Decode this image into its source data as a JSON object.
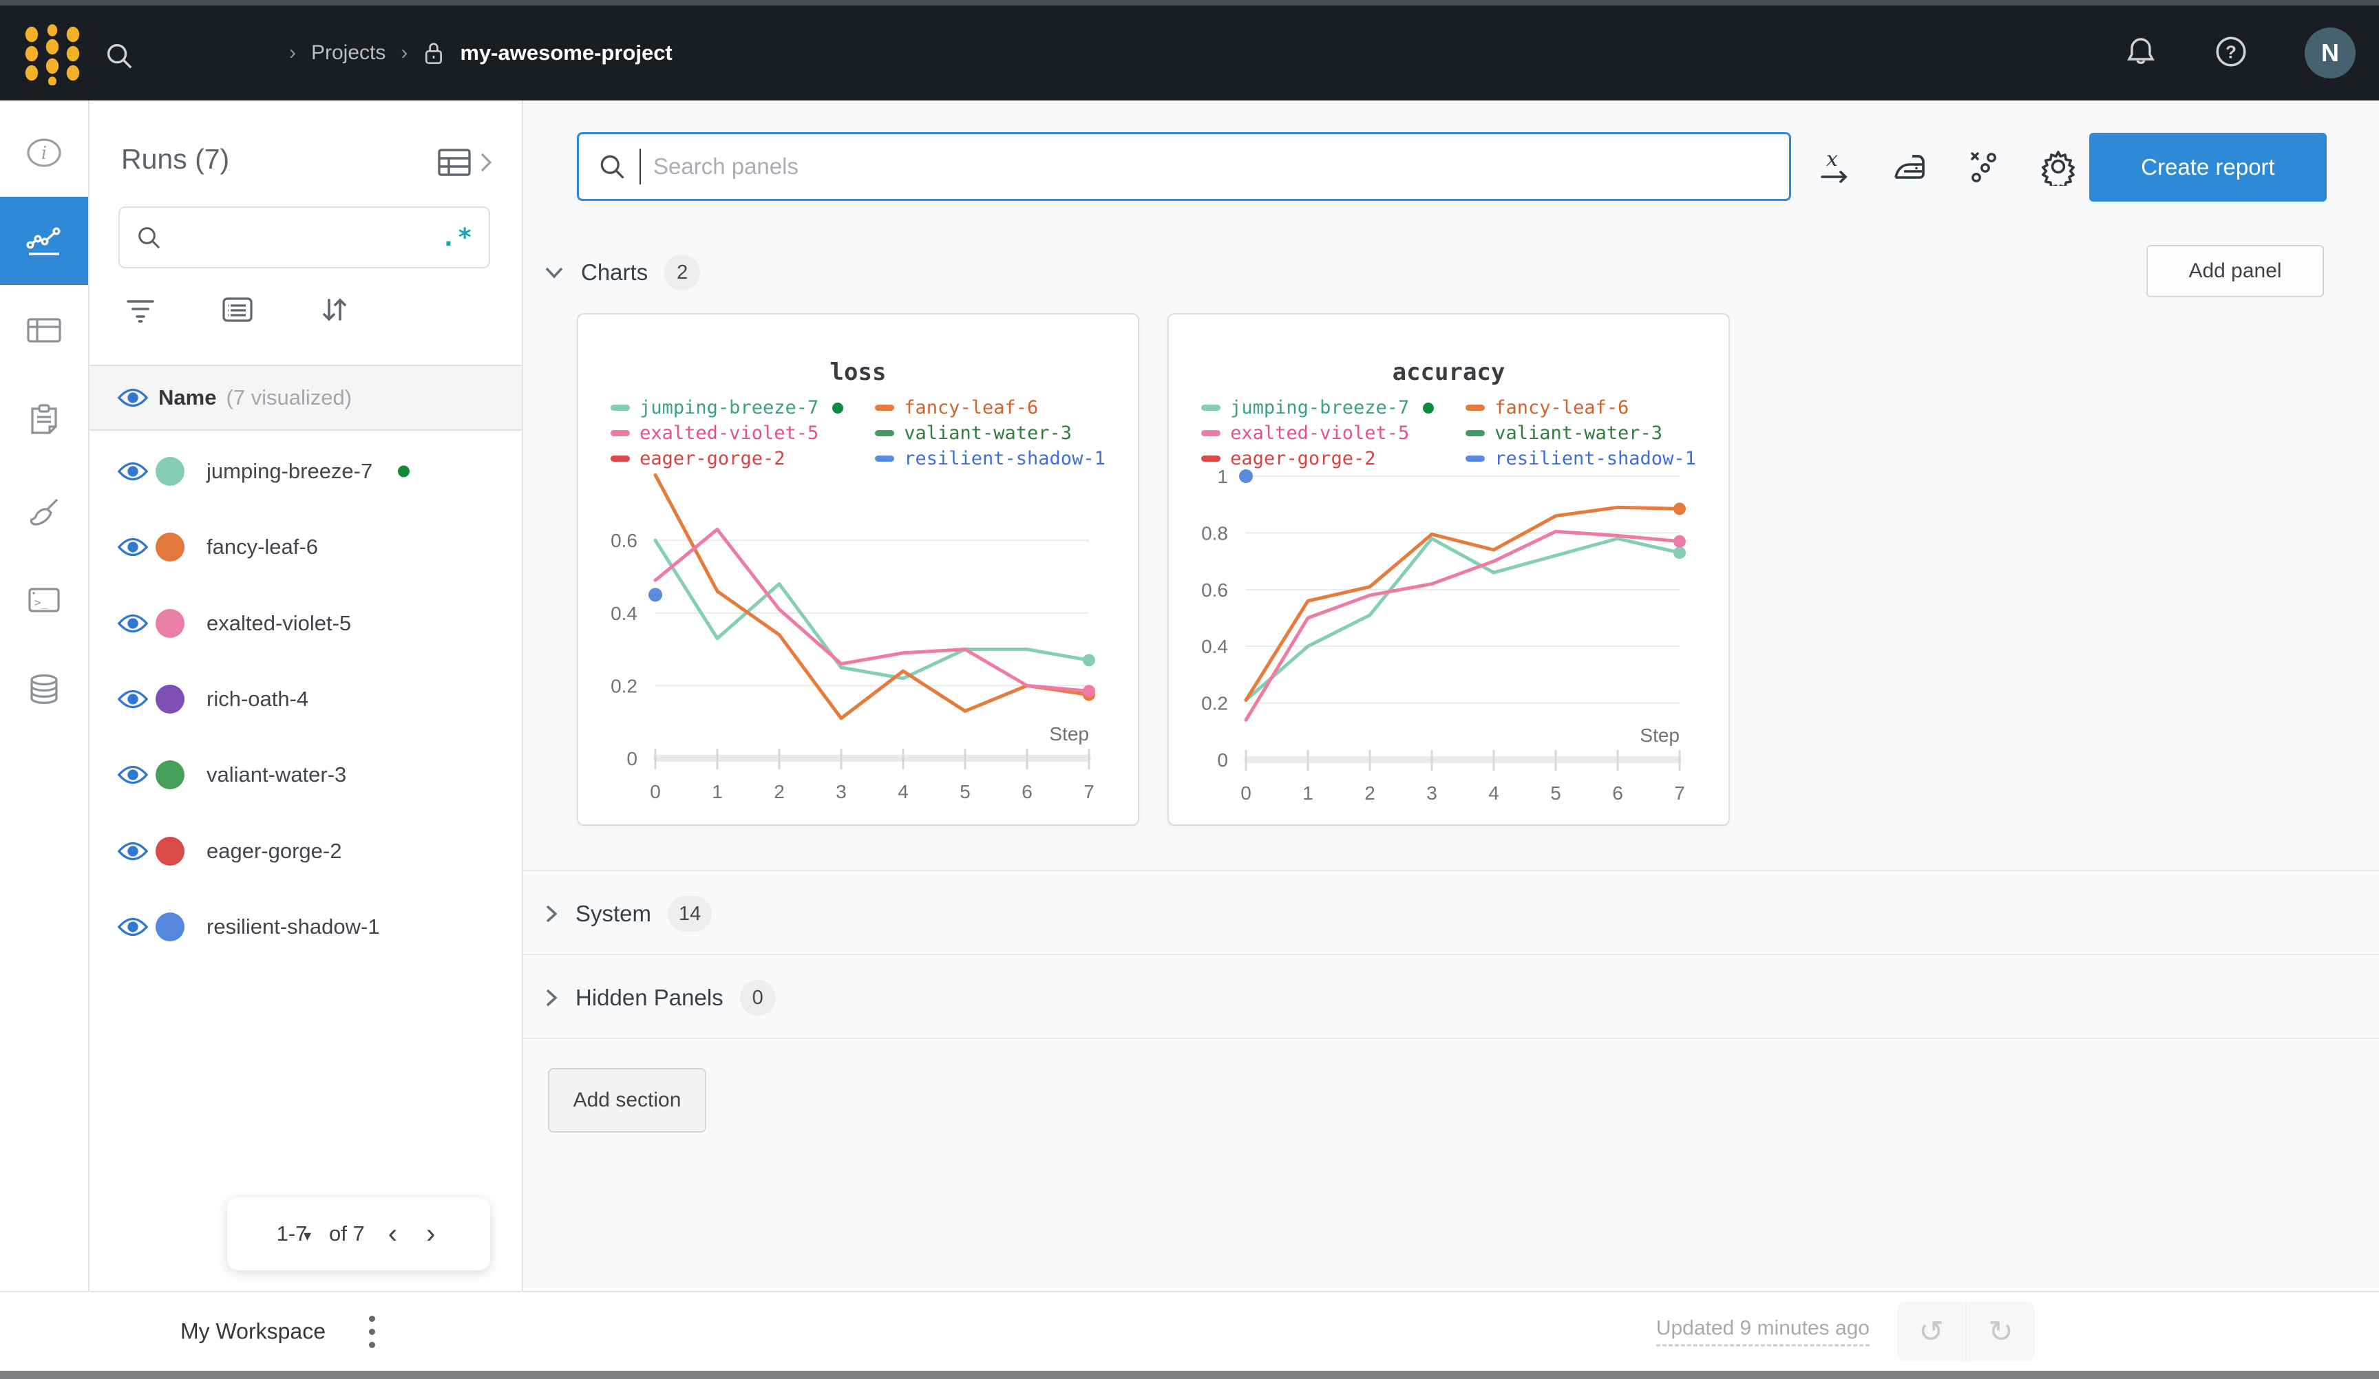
{
  "topbar": {
    "breadcrumb": {
      "separator": "›",
      "projects_label": "Projects",
      "project_name": "my-awesome-project"
    },
    "icons": [
      "wandb-logo",
      "search-icon",
      "lock-icon",
      "bell-icon",
      "help-icon"
    ],
    "avatar_initial": "N"
  },
  "sidebar_rail": {
    "items": [
      "info",
      "charts (active)",
      "tables",
      "notes",
      "sweeps-brush",
      "terminal",
      "artifacts-database"
    ]
  },
  "runs_panel": {
    "title": "Runs (7)",
    "search_placeholder": "",
    "regex_icon_text": ".*",
    "header": {
      "name_label": "Name",
      "visualized_label": "(7 visualized)"
    },
    "runs": [
      {
        "name": "jumping-breeze-7",
        "color": "#84cdb3",
        "running": true
      },
      {
        "name": "fancy-leaf-6",
        "color": "#e0793b",
        "running": false
      },
      {
        "name": "exalted-violet-5",
        "color": "#e97ea7",
        "running": false
      },
      {
        "name": "rich-oath-4",
        "color": "#7e50b4",
        "running": false
      },
      {
        "name": "valiant-water-3",
        "color": "#46a05c",
        "running": false
      },
      {
        "name": "eager-gorge-2",
        "color": "#d84b49",
        "running": false
      },
      {
        "name": "resilient-shadow-1",
        "color": "#5588dd",
        "running": false
      }
    ],
    "pagination": {
      "range_label": "1-7",
      "of_label": "of 7",
      "prev": "‹",
      "next": "›"
    }
  },
  "main": {
    "search_placeholder": "Search panels",
    "create_report_label": "Create report",
    "add_panel_label": "Add panel",
    "add_section_label": "Add section",
    "sections": [
      {
        "label": "Charts",
        "count": "2"
      },
      {
        "label": "System",
        "count": "14"
      },
      {
        "label": "Hidden Panels",
        "count": "0"
      }
    ]
  },
  "footer": {
    "workspace_label": "My Workspace",
    "updated_text": "Updated 9 minutes ago",
    "undo_icon": "↺",
    "redo_icon": "↻"
  },
  "colors": {
    "accent_blue": "#2e8ad6",
    "eye_blue": "#2e78d2",
    "topbar_bg": "#1a1d21",
    "logo_gold": "#f2b126",
    "avatar_bg": "#47626f",
    "regex_teal": "#14a5b0",
    "running_green": "#118a38"
  },
  "chart_data": [
    {
      "type": "line",
      "title": "loss",
      "xlabel": "Step",
      "x": [
        0,
        1,
        2,
        3,
        4,
        5,
        6,
        7
      ],
      "xlim": [
        0,
        7
      ],
      "ylim": [
        0,
        0.8
      ],
      "yticks": [
        0,
        0.2,
        0.4,
        0.6
      ],
      "grid": true,
      "legend_position": "top",
      "series": [
        {
          "name": "jumping-breeze-7",
          "line_color": "#85ceb6",
          "text_color": "#3aa089",
          "running": true,
          "values": [
            0.6,
            0.33,
            0.48,
            0.25,
            0.22,
            0.3,
            0.3,
            0.27
          ]
        },
        {
          "name": "fancy-leaf-6",
          "line_color": "#e57b3c",
          "text_color": "#d2642a",
          "running": false,
          "values": [
            0.78,
            0.46,
            0.34,
            0.11,
            0.24,
            0.13,
            0.2,
            0.175
          ]
        },
        {
          "name": "exalted-violet-5",
          "line_color": "#ee7ba6",
          "text_color": "#e4508c",
          "running": false,
          "values": [
            0.49,
            0.63,
            0.41,
            0.26,
            0.29,
            0.3,
            0.2,
            0.185
          ]
        },
        {
          "name": "valiant-water-3",
          "line_color": "#479a5f",
          "text_color": "#2f7d3d",
          "running": false,
          "values": []
        },
        {
          "name": "eager-gorge-2",
          "line_color": "#d94a4b",
          "text_color": "#d94340",
          "running": false,
          "values": []
        },
        {
          "name": "resilient-shadow-1",
          "line_color": "#5b8bdf",
          "text_color": "#3e6fd9",
          "running": false,
          "values": [
            0.45
          ]
        }
      ]
    },
    {
      "type": "line",
      "title": "accuracy",
      "xlabel": "Step",
      "x": [
        0,
        1,
        2,
        3,
        4,
        5,
        6,
        7
      ],
      "xlim": [
        0,
        7
      ],
      "ylim": [
        0,
        1.05
      ],
      "yticks": [
        0,
        0.2,
        0.4,
        0.6,
        0.8,
        1
      ],
      "grid": true,
      "legend_position": "top",
      "series": [
        {
          "name": "jumping-breeze-7",
          "line_color": "#85ceb6",
          "text_color": "#3aa089",
          "running": true,
          "values": [
            0.21,
            0.4,
            0.51,
            0.78,
            0.66,
            0.72,
            0.78,
            0.73
          ]
        },
        {
          "name": "fancy-leaf-6",
          "line_color": "#e57b3c",
          "text_color": "#d2642a",
          "running": false,
          "values": [
            0.21,
            0.56,
            0.61,
            0.795,
            0.74,
            0.86,
            0.89,
            0.885
          ]
        },
        {
          "name": "exalted-violet-5",
          "line_color": "#ee7ba6",
          "text_color": "#e4508c",
          "running": false,
          "values": [
            0.14,
            0.5,
            0.58,
            0.62,
            0.7,
            0.805,
            0.79,
            0.77
          ]
        },
        {
          "name": "valiant-water-3",
          "line_color": "#479a5f",
          "text_color": "#2f7d3d",
          "running": false,
          "values": []
        },
        {
          "name": "eager-gorge-2",
          "line_color": "#d94a4b",
          "text_color": "#d94340",
          "running": false,
          "values": []
        },
        {
          "name": "resilient-shadow-1",
          "line_color": "#5b8bdf",
          "text_color": "#3e6fd9",
          "running": false,
          "values": [
            1.0
          ]
        }
      ]
    }
  ]
}
